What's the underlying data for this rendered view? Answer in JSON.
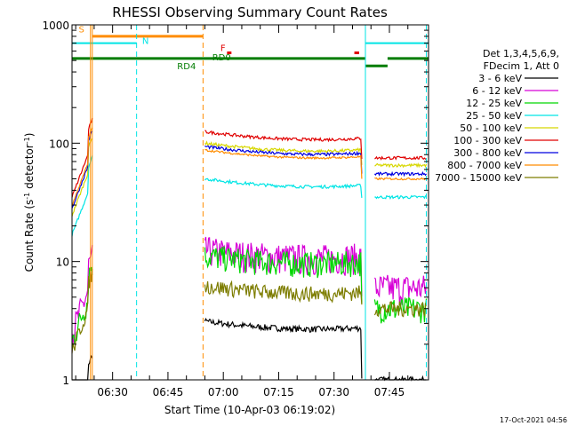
{
  "chart_data": {
    "type": "line",
    "title": "RHESSI Observing Summary Count Rates",
    "xlabel": "Start Time (10-Apr-03 06:19:02)",
    "ylabel_main": "Count Rate (s",
    "ylabel_sup1": "-1",
    "ylabel_mid": " detector",
    "ylabel_sup2": "-1",
    "ylabel_end": ")",
    "yscale": "log",
    "ylim": [
      1,
      1000
    ],
    "xlim_minutes": [
      0,
      96.6
    ],
    "y_ticks": [
      {
        "value": 1,
        "label": "1"
      },
      {
        "value": 10,
        "label": "10"
      },
      {
        "value": 100,
        "label": "100"
      },
      {
        "value": 1000,
        "label": "1000"
      }
    ],
    "x_ticks": [
      {
        "minutes": 11,
        "label": "06:30"
      },
      {
        "minutes": 26,
        "label": "06:45"
      },
      {
        "minutes": 41,
        "label": "07:00"
      },
      {
        "minutes": 56,
        "label": "07:15"
      },
      {
        "minutes": 71,
        "label": "07:30"
      },
      {
        "minutes": 86,
        "label": "07:45"
      }
    ],
    "legend_header": [
      "Det 1,3,4,5,6,9,",
      "FDecim 1, Att 0"
    ],
    "series": [
      {
        "name": "3 - 6 keV",
        "color": "#000000",
        "level_pre": 1.0,
        "level_mid": 2.5,
        "level_post": 1.0
      },
      {
        "name": "6 - 12 keV",
        "color": "#d700d7",
        "level_pre": 7.0,
        "level_mid": 10.0,
        "level_post": 6.0
      },
      {
        "name": "12 - 25 keV",
        "color": "#00d700",
        "level_pre": 6.0,
        "level_mid": 9.0,
        "level_post": 4.0
      },
      {
        "name": "25 - 50 keV",
        "color": "#00e5e5",
        "level_pre": 48,
        "level_mid": 40,
        "level_post": 35
      },
      {
        "name": "50 - 100 keV",
        "color": "#d7d700",
        "level_pre": 70,
        "level_mid": 80,
        "level_post": 65
      },
      {
        "name": "100 - 300 keV",
        "color": "#e00000",
        "level_pre": 100,
        "level_mid": 100,
        "level_post": 75
      },
      {
        "name": "300 - 800 keV",
        "color": "#0000e0",
        "level_pre": 80,
        "level_mid": 75,
        "level_post": 55
      },
      {
        "name": "800 - 7000 keV",
        "color": "#ff8c00",
        "level_pre": 85,
        "level_mid": 70,
        "level_post": 50
      },
      {
        "name": "7000 - 15000 keV",
        "color": "#7d7d00",
        "level_pre": 5.0,
        "level_mid": 5.0,
        "level_post": 4.0
      }
    ],
    "gaps_minutes": [
      [
        5.5,
        36
      ],
      [
        78.5,
        82
      ]
    ],
    "vertical_lines": [
      {
        "minutes": 5,
        "color": "#ff8c00",
        "style": "solid"
      },
      {
        "minutes": 5.5,
        "color": "#ff8c00",
        "style": "solid"
      },
      {
        "minutes": 17.5,
        "color": "#00e5e5",
        "style": "dashed"
      },
      {
        "minutes": 35.5,
        "color": "#ff8c00",
        "style": "dashed"
      },
      {
        "minutes": 79.5,
        "color": "#00e5e5",
        "style": "solid"
      },
      {
        "minutes": 96,
        "color": "#00e5e5",
        "style": "dashed"
      }
    ],
    "flag_annotations": [
      {
        "text": "S",
        "color": "#ff8c00"
      },
      {
        "text": "N",
        "color": "#00e5e5"
      },
      {
        "text": "F",
        "color": "#e00000"
      },
      {
        "text": "RD4",
        "color": "#007d00"
      },
      {
        "text": "RD0",
        "color": "#007d00"
      }
    ],
    "timestamp": "17-Oct-2021 04:56"
  }
}
